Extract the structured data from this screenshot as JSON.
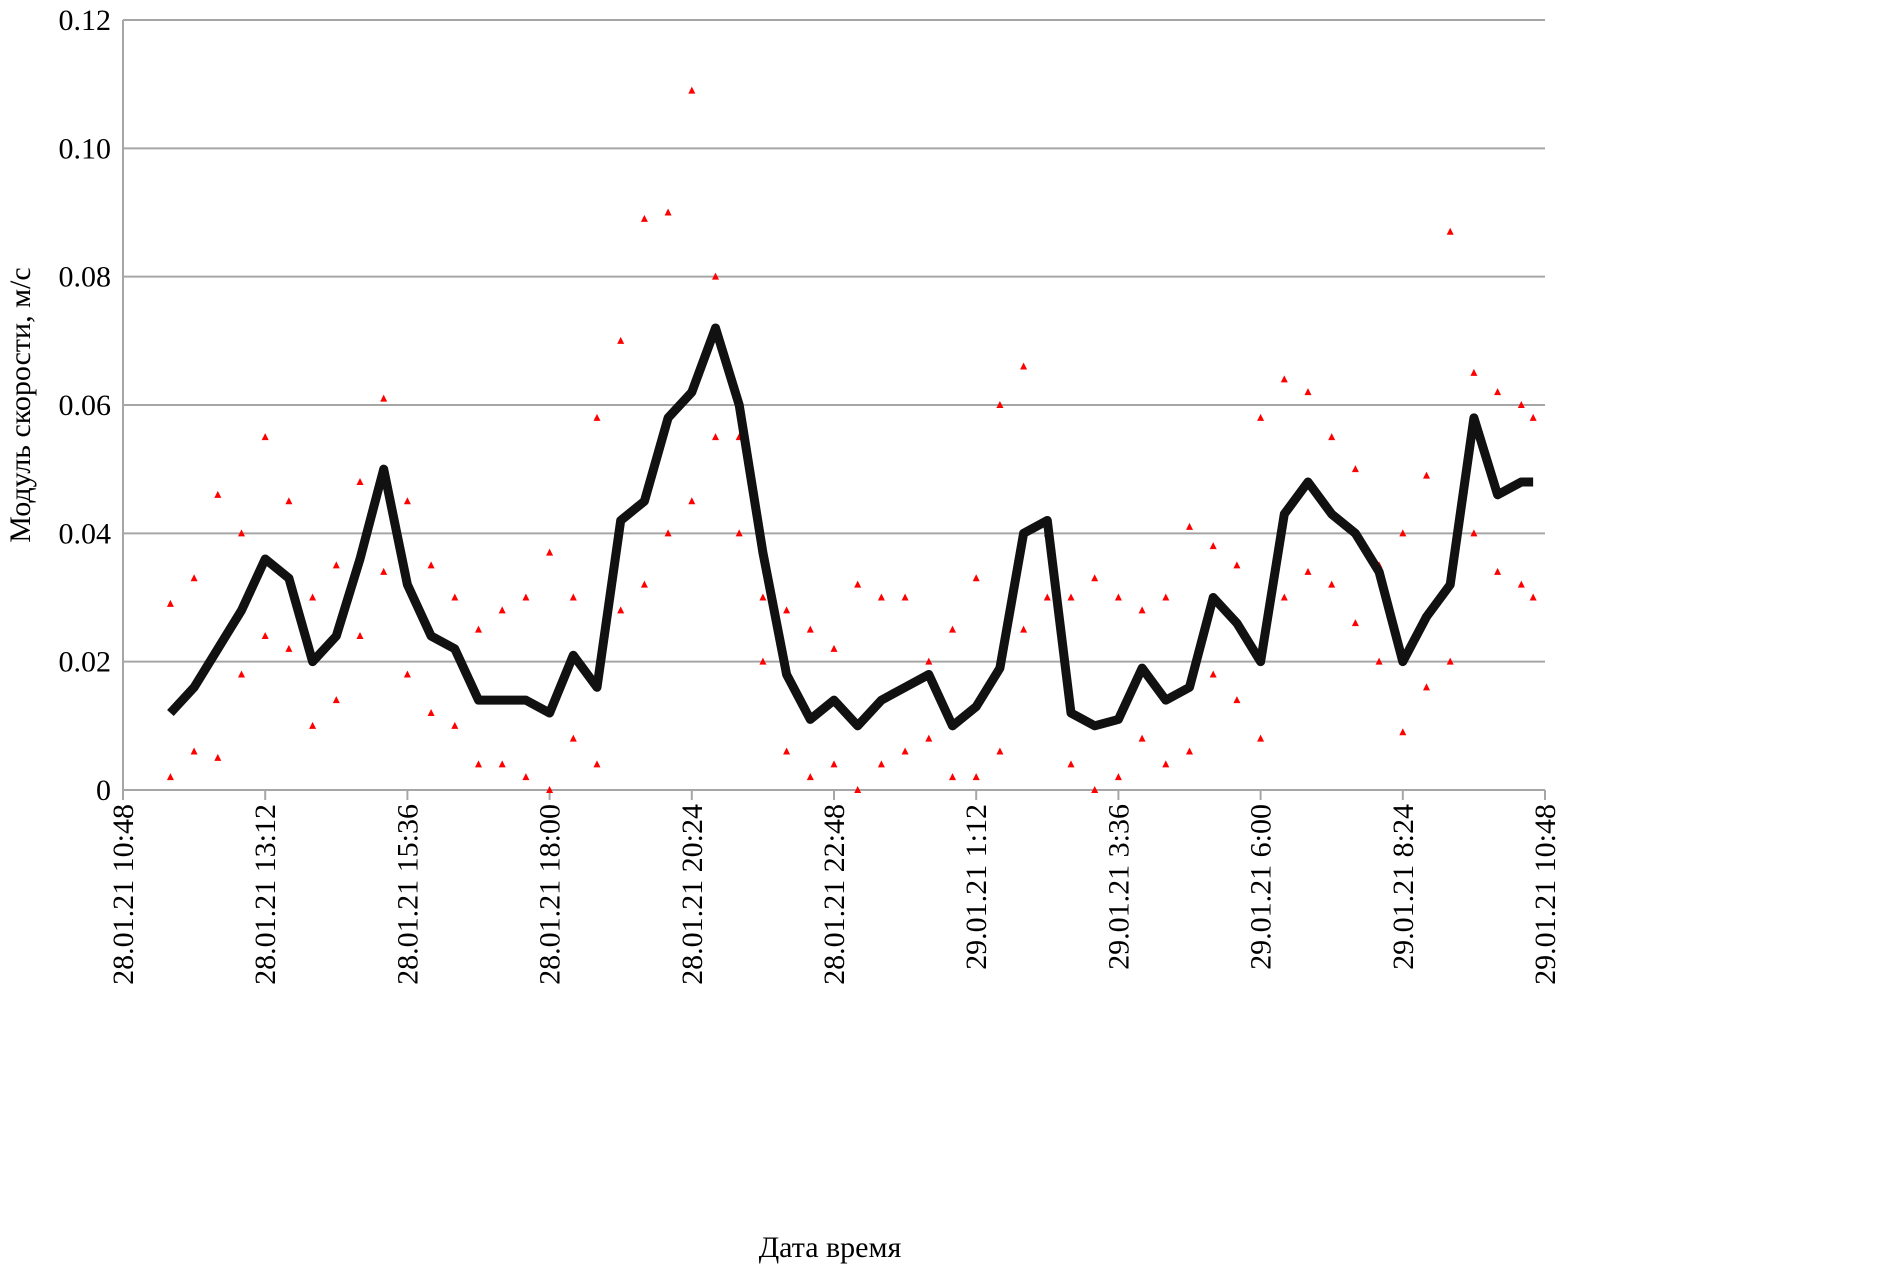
{
  "chart_data": {
    "type": "scatter",
    "ylabel": "Модуль скорости, м/с",
    "xlabel": "Дата время",
    "ylim": [
      0,
      0.12
    ],
    "yticks": [
      0,
      0.02,
      0.04,
      0.06,
      0.08,
      {
        "value": 0.1,
        "label": "0.10"
      },
      0.12
    ],
    "xlim": [
      "2021-01-28T10:48",
      "2021-01-29T10:48"
    ],
    "xticks": [
      {
        "value": "2021-01-28T10:48",
        "label": "28.01.21 10:48"
      },
      {
        "value": "2021-01-28T13:12",
        "label": "28.01.21 13:12"
      },
      {
        "value": "2021-01-28T15:36",
        "label": "28.01.21 15:36"
      },
      {
        "value": "2021-01-28T18:00",
        "label": "28.01.21 18:00"
      },
      {
        "value": "2021-01-28T20:24",
        "label": "28.01.21 20:24"
      },
      {
        "value": "2021-01-28T22:48",
        "label": "28.01.21 22:48"
      },
      {
        "value": "2021-01-29T01:12",
        "label": "29.01.21 1:12"
      },
      {
        "value": "2021-01-29T03:36",
        "label": "29.01.21 3:36"
      },
      {
        "value": "2021-01-29T06:00",
        "label": "29.01.21 6:00"
      },
      {
        "value": "2021-01-29T08:24",
        "label": "29.01.21 8:24"
      },
      {
        "value": "2021-01-29T10:48",
        "label": "29.01.21 10:48"
      }
    ],
    "grid": true,
    "x": [
      "2021-01-28T11:36",
      "2021-01-28T12:00",
      "2021-01-28T12:24",
      "2021-01-28T12:48",
      "2021-01-28T13:12",
      "2021-01-28T13:36",
      "2021-01-28T14:00",
      "2021-01-28T14:24",
      "2021-01-28T14:48",
      "2021-01-28T15:12",
      "2021-01-28T15:36",
      "2021-01-28T16:00",
      "2021-01-28T16:24",
      "2021-01-28T16:48",
      "2021-01-28T17:12",
      "2021-01-28T17:36",
      "2021-01-28T18:00",
      "2021-01-28T18:24",
      "2021-01-28T18:48",
      "2021-01-28T19:12",
      "2021-01-28T19:36",
      "2021-01-28T20:00",
      "2021-01-28T20:24",
      "2021-01-28T20:48",
      "2021-01-28T21:12",
      "2021-01-28T21:36",
      "2021-01-28T22:00",
      "2021-01-28T22:24",
      "2021-01-28T22:48",
      "2021-01-28T23:12",
      "2021-01-28T23:36",
      "2021-01-29T00:00",
      "2021-01-29T00:24",
      "2021-01-29T00:48",
      "2021-01-29T01:12",
      "2021-01-29T01:36",
      "2021-01-29T02:00",
      "2021-01-29T02:24",
      "2021-01-29T02:48",
      "2021-01-29T03:12",
      "2021-01-29T03:36",
      "2021-01-29T04:00",
      "2021-01-29T04:24",
      "2021-01-29T04:48",
      "2021-01-29T05:12",
      "2021-01-29T05:36",
      "2021-01-29T06:00",
      "2021-01-29T06:24",
      "2021-01-29T06:48",
      "2021-01-29T07:12",
      "2021-01-29T07:36",
      "2021-01-29T08:00",
      "2021-01-29T08:24",
      "2021-01-29T08:48",
      "2021-01-29T09:12",
      "2021-01-29T09:36",
      "2021-01-29T10:00",
      "2021-01-29T10:24",
      "2021-01-29T10:36"
    ],
    "series": [
      {
        "color": "#ff0000",
        "marker": "triangle",
        "values": [
          0.029,
          0.033,
          0.046,
          0.04,
          0.055,
          0.045,
          0.03,
          0.035,
          0.048,
          0.061,
          0.045,
          0.035,
          0.03,
          0.025,
          0.028,
          0.03,
          0.037,
          0.03,
          0.058,
          0.07,
          0.089,
          0.09,
          0.109,
          0.08,
          0.055,
          0.03,
          0.028,
          0.025,
          0.022,
          0.032,
          0.03,
          0.03,
          0.02,
          0.025,
          0.033,
          0.06,
          0.066,
          0.04,
          0.03,
          0.033,
          0.03,
          0.028,
          0.03,
          0.041,
          0.038,
          0.035,
          0.058,
          0.064,
          0.062,
          0.055,
          0.05,
          0.035,
          0.04,
          0.049,
          0.087,
          0.065,
          0.062,
          0.06,
          0.058
        ]
      },
      {
        "color": "#ff0000",
        "marker": "triangle",
        "values": [
          0.002,
          0.006,
          0.005,
          0.018,
          0.024,
          0.022,
          0.01,
          0.014,
          0.024,
          0.034,
          0.018,
          0.012,
          0.01,
          0.004,
          0.004,
          0.002,
          0.0,
          0.008,
          0.004,
          0.028,
          0.032,
          0.04,
          0.045,
          0.055,
          0.04,
          0.02,
          0.006,
          0.002,
          0.004,
          0.0,
          0.004,
          0.006,
          0.008,
          0.002,
          0.002,
          0.006,
          0.025,
          0.03,
          0.004,
          0.0,
          0.002,
          0.008,
          0.004,
          0.006,
          0.018,
          0.014,
          0.008,
          0.03,
          0.034,
          0.032,
          0.026,
          0.02,
          0.009,
          0.016,
          0.02,
          0.04,
          0.034,
          0.032,
          0.03
        ]
      },
      {
        "color": "#111111",
        "line": true,
        "values": [
          0.012,
          0.016,
          0.022,
          0.028,
          0.036,
          0.033,
          0.02,
          0.024,
          0.036,
          0.05,
          0.032,
          0.024,
          0.022,
          0.014,
          0.014,
          0.014,
          0.012,
          0.021,
          0.016,
          0.042,
          0.045,
          0.058,
          0.062,
          0.072,
          0.06,
          0.037,
          0.018,
          0.011,
          0.014,
          0.01,
          0.014,
          0.016,
          0.018,
          0.01,
          0.013,
          0.019,
          0.04,
          0.042,
          0.012,
          0.01,
          0.011,
          0.019,
          0.014,
          0.016,
          0.03,
          0.026,
          0.02,
          0.043,
          0.048,
          0.043,
          0.04,
          0.034,
          0.02,
          0.027,
          0.032,
          0.058,
          0.046,
          0.048,
          0.048
        ]
      }
    ]
  }
}
